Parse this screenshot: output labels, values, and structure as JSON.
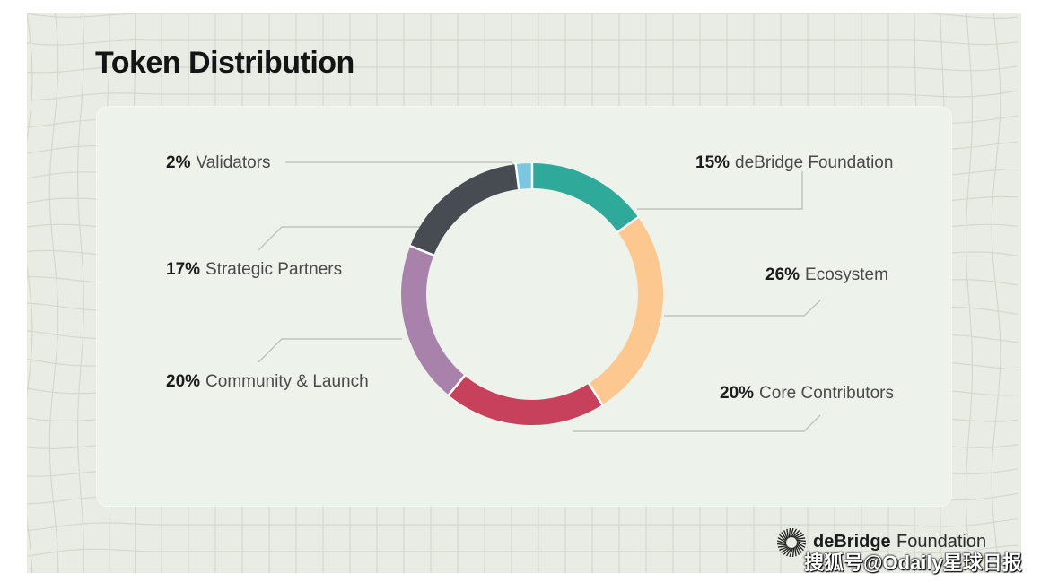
{
  "title": "Token Distribution",
  "brand": {
    "name": "deBridge",
    "suffix": "Foundation"
  },
  "watermark": "搜狐号@Odaily星球日报",
  "chart_data": {
    "type": "pie",
    "style": "donut",
    "title": "Token Distribution",
    "slices": [
      {
        "label": "deBridge Foundation",
        "value": 15,
        "pct_text": "15%",
        "color": "#2ea99a"
      },
      {
        "label": "Ecosystem",
        "value": 26,
        "pct_text": "26%",
        "color": "#fcc890"
      },
      {
        "label": "Core Contributors",
        "value": 20,
        "pct_text": "20%",
        "color": "#c7405c"
      },
      {
        "label": "Community & Launch",
        "value": 20,
        "pct_text": "20%",
        "color": "#a882ab"
      },
      {
        "label": "Strategic Partners",
        "value": 17,
        "pct_text": "17%",
        "color": "#474b52"
      },
      {
        "label": "Validators",
        "value": 2,
        "pct_text": "2%",
        "color": "#7cc7e0"
      }
    ]
  }
}
